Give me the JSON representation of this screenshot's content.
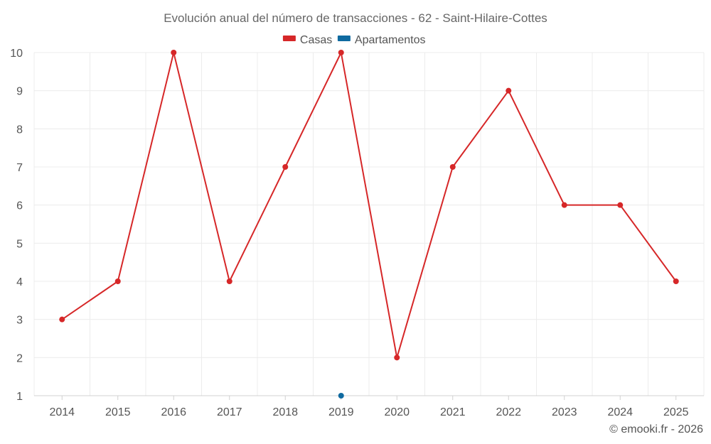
{
  "chart_data": {
    "type": "line",
    "title": "Evolución anual del número de transacciones - 62 - Saint-Hilaire-Cottes",
    "categories": [
      "2014",
      "2015",
      "2016",
      "2017",
      "2018",
      "2019",
      "2020",
      "2021",
      "2022",
      "2023",
      "2024",
      "2025"
    ],
    "series": [
      {
        "name": "Casas",
        "color": "#d62728",
        "values": [
          3,
          4,
          10,
          4,
          7,
          10,
          2,
          7,
          9,
          6,
          6,
          4
        ]
      },
      {
        "name": "Apartamentos",
        "color": "#0f6aa0",
        "values": [
          null,
          null,
          null,
          null,
          null,
          1,
          null,
          null,
          null,
          null,
          null,
          null
        ]
      }
    ],
    "ylim": [
      1,
      10
    ],
    "yticks": [
      1,
      2,
      3,
      4,
      5,
      6,
      7,
      8,
      9,
      10
    ],
    "grid": true,
    "legend_position": "top-center",
    "xlabel": "",
    "ylabel": ""
  },
  "credit": "© emooki.fr - 2026"
}
